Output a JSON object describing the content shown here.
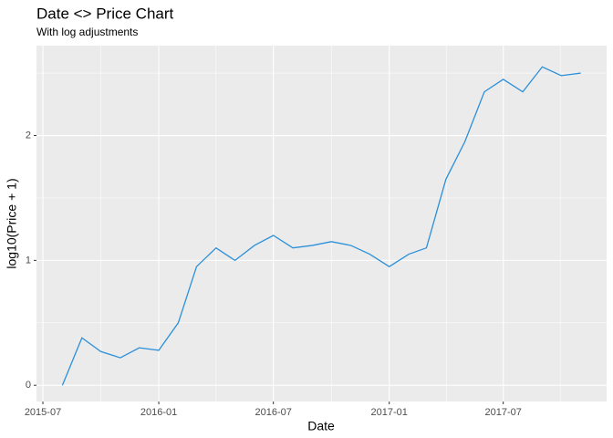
{
  "chart_data": {
    "type": "line",
    "title": "Date <> Price Chart",
    "subtitle": "With log adjustments",
    "x_label": "Date",
    "y_label": "log10(Price + 1)",
    "x": [
      "2015-08",
      "2015-09",
      "2015-10",
      "2015-11",
      "2015-12",
      "2016-01",
      "2016-02",
      "2016-03",
      "2016-04",
      "2016-05",
      "2016-06",
      "2016-07",
      "2016-08",
      "2016-09",
      "2016-10",
      "2016-11",
      "2016-12",
      "2017-01",
      "2017-02",
      "2017-03",
      "2017-04",
      "2017-05",
      "2017-06",
      "2017-07",
      "2017-08",
      "2017-09",
      "2017-10",
      "2017-11"
    ],
    "values": [
      0,
      0.38,
      0.27,
      0.22,
      0.3,
      0.28,
      0.5,
      0.95,
      1.1,
      1.0,
      1.12,
      1.2,
      1.1,
      1.12,
      1.15,
      1.12,
      1.05,
      0.95,
      1.05,
      1.1,
      1.65,
      1.95,
      2.35,
      2.45,
      2.35,
      2.55,
      2.48,
      2.5
    ],
    "color": "#2b90d9",
    "xlim": [
      "2015-08",
      "2017-11"
    ],
    "xticks": [
      "2015-07",
      "2016-01",
      "2016-07",
      "2017-01",
      "2017-07"
    ],
    "ylim": [
      -0.13,
      2.72
    ],
    "yticks": [
      0,
      1,
      2
    ],
    "grid": true
  }
}
